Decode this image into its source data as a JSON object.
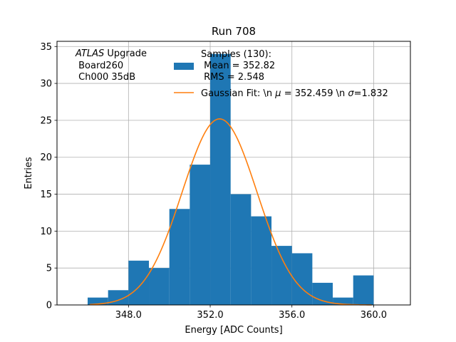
{
  "chart_data": {
    "type": "bar",
    "title": "Run 708",
    "xlabel": "Energy [ADC Counts]",
    "ylabel": "Entries",
    "xlim": [
      344.5,
      361.8
    ],
    "ylim": [
      0,
      35.7
    ],
    "x_ticks": [
      348.0,
      352.0,
      356.0,
      360.0
    ],
    "x_tick_labels": [
      "348.0",
      "352.0",
      "356.0",
      "360.0"
    ],
    "y_ticks": [
      0,
      5,
      10,
      15,
      20,
      25,
      30,
      35
    ],
    "y_tick_labels": [
      "0",
      "5",
      "10",
      "15",
      "20",
      "25",
      "30",
      "35"
    ],
    "grid": true,
    "bin_edges": [
      346,
      347,
      348,
      349,
      350,
      351,
      352,
      353,
      354,
      355,
      356,
      357,
      358,
      359,
      360
    ],
    "counts": [
      1,
      2,
      6,
      5,
      13,
      19,
      34,
      15,
      12,
      8,
      7,
      3,
      1,
      4
    ],
    "bar_color": "#1f77b4",
    "fit_color": "#ff7f0e",
    "fit": {
      "mu": 352.459,
      "sigma": 1.832,
      "peak": 25.2
    },
    "legend": {
      "position": "top-right",
      "samples_line1": "Samples (130):",
      "samples_line2": " Mean = 352.82",
      "samples_line3": " RMS = 2.548",
      "fit_label_prefix": "Gaussian Fit: \\n ",
      "fit_mu_symbol": "μ",
      "fit_label_mid": " = 352.459 \\n ",
      "fit_sigma_symbol": "σ",
      "fit_label_suffix": "=1.832"
    },
    "annotation": {
      "experiment": "ATLAS",
      "experiment_suffix": " Upgrade",
      "board": " Board260",
      "channel": " Ch000 35dB"
    }
  }
}
